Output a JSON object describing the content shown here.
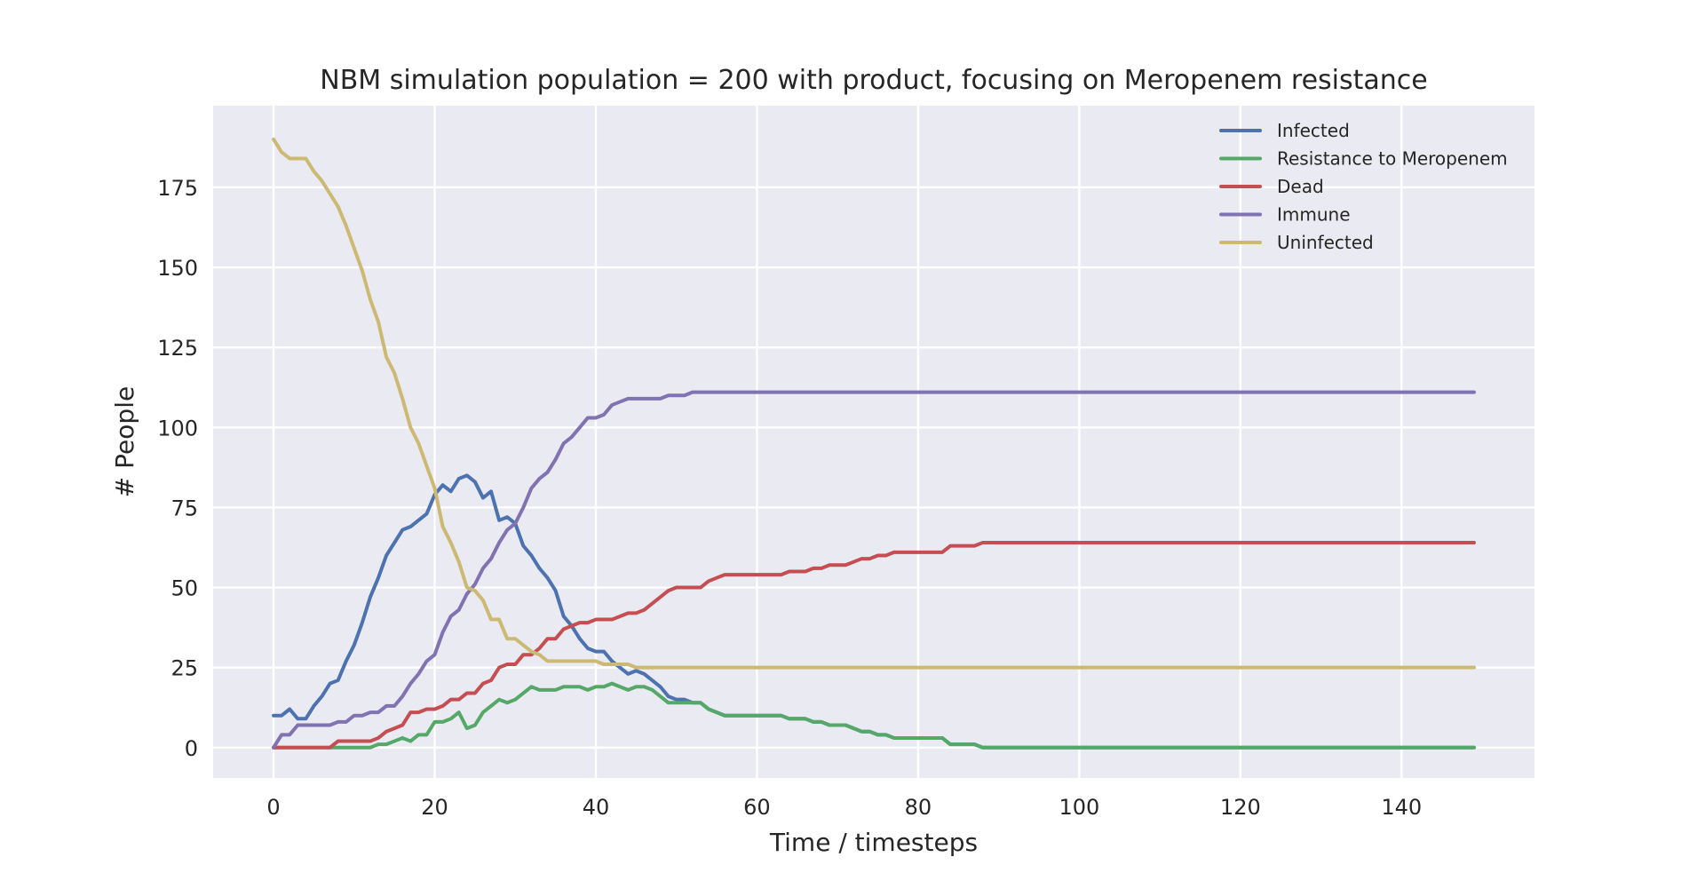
{
  "chart_data": {
    "type": "line",
    "title": "NBM simulation population = 200 with product, focusing on Meropenem resistance",
    "xlabel": "Time / timesteps",
    "ylabel": "# People",
    "xlim": [
      -7.5,
      156.5
    ],
    "ylim": [
      -9.5,
      200.5
    ],
    "xticks": [
      0,
      20,
      40,
      60,
      80,
      100,
      120,
      140
    ],
    "yticks": [
      0,
      25,
      50,
      75,
      100,
      125,
      150,
      175
    ],
    "grid": true,
    "legend_position": "top-right",
    "series": [
      {
        "name": "Infected",
        "color": "#4c72b0",
        "points": [
          [
            0,
            10
          ],
          [
            1,
            10
          ],
          [
            2,
            12
          ],
          [
            3,
            9
          ],
          [
            4,
            9
          ],
          [
            5,
            13
          ],
          [
            6,
            16
          ],
          [
            7,
            20
          ],
          [
            8,
            21
          ],
          [
            9,
            27
          ],
          [
            10,
            32
          ],
          [
            11,
            39
          ],
          [
            12,
            47
          ],
          [
            13,
            53
          ],
          [
            14,
            60
          ],
          [
            15,
            64
          ],
          [
            16,
            68
          ],
          [
            17,
            69
          ],
          [
            18,
            71
          ],
          [
            19,
            73
          ],
          [
            20,
            79
          ],
          [
            21,
            82
          ],
          [
            22,
            80
          ],
          [
            23,
            84
          ],
          [
            24,
            85
          ],
          [
            25,
            83
          ],
          [
            26,
            78
          ],
          [
            27,
            80
          ],
          [
            28,
            71
          ],
          [
            29,
            72
          ],
          [
            30,
            70
          ],
          [
            31,
            63
          ],
          [
            32,
            60
          ],
          [
            33,
            56
          ],
          [
            34,
            53
          ],
          [
            35,
            49
          ],
          [
            36,
            41
          ],
          [
            37,
            38
          ],
          [
            38,
            34
          ],
          [
            39,
            31
          ],
          [
            40,
            30
          ],
          [
            41,
            30
          ],
          [
            42,
            27
          ],
          [
            43,
            25
          ],
          [
            44,
            23
          ],
          [
            45,
            24
          ],
          [
            46,
            23
          ],
          [
            47,
            21
          ],
          [
            48,
            19
          ],
          [
            49,
            16
          ],
          [
            50,
            15
          ],
          [
            51,
            15
          ],
          [
            52,
            14
          ],
          [
            53,
            14
          ],
          [
            54,
            12
          ],
          [
            55,
            11
          ],
          [
            56,
            10
          ],
          [
            60,
            10
          ],
          [
            62,
            10
          ],
          [
            63,
            10
          ],
          [
            64,
            9
          ],
          [
            66,
            9
          ],
          [
            67,
            8
          ],
          [
            68,
            8
          ],
          [
            69,
            7
          ],
          [
            71,
            7
          ],
          [
            72,
            6
          ],
          [
            73,
            5
          ],
          [
            74,
            5
          ],
          [
            75,
            4
          ],
          [
            76,
            4
          ],
          [
            77,
            3
          ],
          [
            83,
            3
          ],
          [
            84,
            1
          ],
          [
            87,
            1
          ],
          [
            88,
            0
          ],
          [
            149,
            0
          ]
        ]
      },
      {
        "name": "Resistance to Meropenem",
        "color": "#55a868",
        "points": [
          [
            0,
            0
          ],
          [
            6,
            0
          ],
          [
            7,
            0
          ],
          [
            12,
            0
          ],
          [
            13,
            1
          ],
          [
            14,
            1
          ],
          [
            15,
            2
          ],
          [
            16,
            3
          ],
          [
            17,
            2
          ],
          [
            18,
            4
          ],
          [
            19,
            4
          ],
          [
            20,
            8
          ],
          [
            21,
            8
          ],
          [
            22,
            9
          ],
          [
            23,
            11
          ],
          [
            24,
            6
          ],
          [
            25,
            7
          ],
          [
            26,
            11
          ],
          [
            27,
            13
          ],
          [
            28,
            15
          ],
          [
            29,
            14
          ],
          [
            30,
            15
          ],
          [
            31,
            17
          ],
          [
            32,
            19
          ],
          [
            33,
            18
          ],
          [
            35,
            18
          ],
          [
            36,
            19
          ],
          [
            38,
            19
          ],
          [
            39,
            18
          ],
          [
            40,
            19
          ],
          [
            41,
            19
          ],
          [
            42,
            20
          ],
          [
            43,
            19
          ],
          [
            44,
            18
          ],
          [
            45,
            19
          ],
          [
            46,
            19
          ],
          [
            47,
            18
          ],
          [
            48,
            16
          ],
          [
            49,
            14
          ],
          [
            52,
            14
          ],
          [
            53,
            14
          ],
          [
            54,
            12
          ],
          [
            55,
            11
          ],
          [
            56,
            10
          ],
          [
            63,
            10
          ],
          [
            64,
            9
          ],
          [
            66,
            9
          ],
          [
            67,
            8
          ],
          [
            68,
            8
          ],
          [
            69,
            7
          ],
          [
            71,
            7
          ],
          [
            72,
            6
          ],
          [
            73,
            5
          ],
          [
            74,
            5
          ],
          [
            75,
            4
          ],
          [
            76,
            4
          ],
          [
            77,
            3
          ],
          [
            83,
            3
          ],
          [
            84,
            1
          ],
          [
            87,
            1
          ],
          [
            88,
            0
          ],
          [
            149,
            0
          ]
        ]
      },
      {
        "name": "Dead",
        "color": "#c44e52",
        "points": [
          [
            0,
            0
          ],
          [
            7,
            0
          ],
          [
            8,
            2
          ],
          [
            12,
            2
          ],
          [
            13,
            3
          ],
          [
            14,
            5
          ],
          [
            15,
            6
          ],
          [
            16,
            7
          ],
          [
            17,
            11
          ],
          [
            18,
            11
          ],
          [
            19,
            12
          ],
          [
            20,
            12
          ],
          [
            21,
            13
          ],
          [
            22,
            15
          ],
          [
            23,
            15
          ],
          [
            24,
            17
          ],
          [
            25,
            17
          ],
          [
            26,
            20
          ],
          [
            27,
            21
          ],
          [
            28,
            25
          ],
          [
            29,
            26
          ],
          [
            30,
            26
          ],
          [
            31,
            29
          ],
          [
            32,
            29
          ],
          [
            33,
            31
          ],
          [
            34,
            34
          ],
          [
            35,
            34
          ],
          [
            36,
            37
          ],
          [
            37,
            38
          ],
          [
            38,
            39
          ],
          [
            39,
            39
          ],
          [
            40,
            40
          ],
          [
            42,
            40
          ],
          [
            43,
            41
          ],
          [
            44,
            42
          ],
          [
            45,
            42
          ],
          [
            46,
            43
          ],
          [
            47,
            45
          ],
          [
            48,
            47
          ],
          [
            49,
            49
          ],
          [
            50,
            50
          ],
          [
            53,
            50
          ],
          [
            54,
            52
          ],
          [
            55,
            53
          ],
          [
            56,
            54
          ],
          [
            63,
            54
          ],
          [
            64,
            55
          ],
          [
            66,
            55
          ],
          [
            67,
            56
          ],
          [
            68,
            56
          ],
          [
            69,
            57
          ],
          [
            71,
            57
          ],
          [
            72,
            58
          ],
          [
            73,
            59
          ],
          [
            74,
            59
          ],
          [
            75,
            60
          ],
          [
            76,
            60
          ],
          [
            77,
            61
          ],
          [
            83,
            61
          ],
          [
            84,
            63
          ],
          [
            87,
            63
          ],
          [
            88,
            64
          ],
          [
            149,
            64
          ]
        ]
      },
      {
        "name": "Immune",
        "color": "#8172b2",
        "points": [
          [
            0,
            0
          ],
          [
            1,
            4
          ],
          [
            2,
            4
          ],
          [
            3,
            7
          ],
          [
            7,
            7
          ],
          [
            8,
            8
          ],
          [
            9,
            8
          ],
          [
            10,
            10
          ],
          [
            11,
            10
          ],
          [
            12,
            11
          ],
          [
            13,
            11
          ],
          [
            14,
            13
          ],
          [
            15,
            13
          ],
          [
            16,
            16
          ],
          [
            17,
            20
          ],
          [
            18,
            23
          ],
          [
            19,
            27
          ],
          [
            20,
            29
          ],
          [
            21,
            36
          ],
          [
            22,
            41
          ],
          [
            23,
            43
          ],
          [
            24,
            48
          ],
          [
            25,
            51
          ],
          [
            26,
            56
          ],
          [
            27,
            59
          ],
          [
            28,
            64
          ],
          [
            29,
            68
          ],
          [
            30,
            70
          ],
          [
            31,
            75
          ],
          [
            32,
            81
          ],
          [
            33,
            84
          ],
          [
            34,
            86
          ],
          [
            35,
            90
          ],
          [
            36,
            95
          ],
          [
            37,
            97
          ],
          [
            38,
            100
          ],
          [
            39,
            103
          ],
          [
            40,
            103
          ],
          [
            41,
            104
          ],
          [
            42,
            107
          ],
          [
            43,
            108
          ],
          [
            44,
            109
          ],
          [
            48,
            109
          ],
          [
            49,
            110
          ],
          [
            51,
            110
          ],
          [
            52,
            111
          ],
          [
            149,
            111
          ]
        ]
      },
      {
        "name": "Uninfected",
        "color": "#ccb974",
        "points": [
          [
            0,
            190
          ],
          [
            1,
            186
          ],
          [
            2,
            184
          ],
          [
            3,
            184
          ],
          [
            4,
            184
          ],
          [
            5,
            180
          ],
          [
            6,
            177
          ],
          [
            7,
            173
          ],
          [
            8,
            169
          ],
          [
            9,
            163
          ],
          [
            10,
            156
          ],
          [
            11,
            149
          ],
          [
            12,
            140
          ],
          [
            13,
            133
          ],
          [
            14,
            122
          ],
          [
            15,
            117
          ],
          [
            16,
            109
          ],
          [
            17,
            100
          ],
          [
            18,
            95
          ],
          [
            19,
            88
          ],
          [
            20,
            81
          ],
          [
            21,
            69
          ],
          [
            22,
            64
          ],
          [
            23,
            58
          ],
          [
            24,
            50
          ],
          [
            25,
            49
          ],
          [
            26,
            46
          ],
          [
            27,
            40
          ],
          [
            28,
            40
          ],
          [
            29,
            34
          ],
          [
            30,
            34
          ],
          [
            31,
            32
          ],
          [
            32,
            30
          ],
          [
            33,
            29
          ],
          [
            34,
            27
          ],
          [
            35,
            27
          ],
          [
            40,
            27
          ],
          [
            41,
            26
          ],
          [
            44,
            26
          ],
          [
            45,
            25
          ],
          [
            149,
            25
          ]
        ]
      }
    ]
  }
}
